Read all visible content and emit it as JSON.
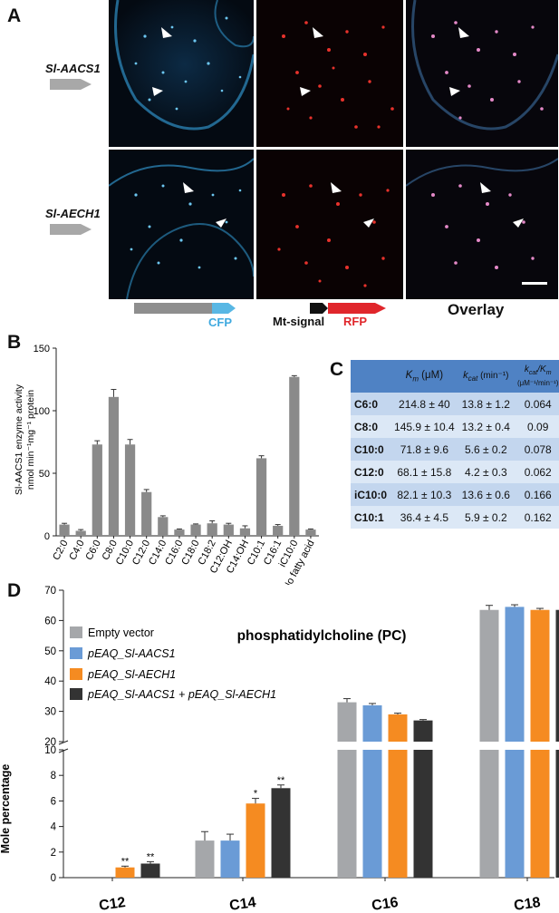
{
  "figure": {
    "panel_a": {
      "letter": "A",
      "rows": [
        {
          "gene": "Sl-AACS1"
        },
        {
          "gene": "Sl-AECH1"
        }
      ],
      "construct_labels": {
        "cfp": "CFP",
        "mt_signal": "Mt-signal",
        "rfp": "RFP",
        "overlay": "Overlay"
      },
      "colors": {
        "cfp": "#58b7e4",
        "rfp": "#e0262b",
        "arrow_gray": "#8e8e8e",
        "mt_black": "#111111"
      }
    },
    "panel_b": {
      "letter": "B",
      "ylabel_line1": "Sl-AACS1 enzyme activity",
      "ylabel_line2": "nmol min⁻¹mg⁻¹ protein"
    },
    "panel_c": {
      "letter": "C",
      "header": {
        "km": "K",
        "km_sub": "m",
        "km_unit": " (μM)",
        "kcat": "k",
        "kcat_sub": "cat",
        "kcat_unit": " (min⁻¹)",
        "ratio": "k",
        "ratio_sub1": "cat",
        "ratio_mid": "/K",
        "ratio_sub2": "m",
        "ratio_unit": "(μM⁻¹/min⁻¹)"
      },
      "rows": [
        {
          "substrate": "C6:0",
          "km": "214.8 ± 40",
          "kcat": "13.8 ± 1.2",
          "ratio": "0.064"
        },
        {
          "substrate": "C8:0",
          "km": "145.9 ± 10.4",
          "kcat": "13.2 ± 0.4",
          "ratio": "0.09"
        },
        {
          "substrate": "C10:0",
          "km": "71.8 ± 9.6",
          "kcat": "5.6 ± 0.2",
          "ratio": "0.078"
        },
        {
          "substrate": "C12:0",
          "km": "68.1 ± 15.8",
          "kcat": "4.2 ± 0.3",
          "ratio": "0.062"
        },
        {
          "substrate": "iC10:0",
          "km": "82.1 ± 10.3",
          "kcat": "13.6 ± 0.6",
          "ratio": "0.166"
        },
        {
          "substrate": "C10:1",
          "km": "36.4 ± 4.5",
          "kcat": "5.9 ± 0.2",
          "ratio": "0.162"
        }
      ],
      "colors": {
        "header_bg": "#4f82c4",
        "row_a": "#c3d6ee",
        "row_b": "#dce8f6"
      }
    },
    "panel_d": {
      "letter": "D",
      "title": "phosphatidylcholine (PC)",
      "ylabel": "Mole percentage",
      "legend": [
        "Empty vector",
        "pEAQ_Sl-AACS1",
        "pEAQ_Sl-AECH1",
        "pEAQ_Sl-AACS1 + pEAQ_Sl-AECH1"
      ],
      "colors": [
        "#a5a7aa",
        "#6a9bd6",
        "#f58b21",
        "#333333"
      ]
    }
  },
  "chart_data": [
    {
      "type": "bar",
      "panel": "B",
      "ylabel": "Sl-AACS1 enzyme activity nmol min⁻¹mg⁻¹ protein",
      "ylim": [
        0,
        150
      ],
      "yticks": [
        0,
        50,
        100,
        150
      ],
      "categories": [
        "C2:0",
        "C4:0",
        "C6:0",
        "C8:0",
        "C10:0",
        "C12:0",
        "C14:0",
        "C16:0",
        "C18:0",
        "C18:2",
        "C12:OH",
        "C14:OH",
        "C10:1",
        "C16:1",
        "iC10:0",
        "No fatty acid"
      ],
      "values": [
        9,
        4,
        73,
        111,
        73,
        35,
        15,
        5,
        9,
        10,
        9,
        6,
        62,
        8,
        127,
        5
      ],
      "errors": [
        1,
        1,
        3,
        6,
        4,
        2,
        1,
        0.5,
        0.5,
        2,
        1,
        2,
        2,
        1,
        1,
        0.5
      ],
      "bar_color": "#8a8a8a"
    },
    {
      "type": "bar",
      "panel": "D",
      "title": "phosphatidylcholine (PC)",
      "ylabel": "Mole percentage",
      "categories": [
        "C12",
        "C14",
        "C16",
        "C18"
      ],
      "yticks_lower": [
        0,
        2,
        4,
        6,
        8,
        10
      ],
      "yticks_upper": [
        20,
        30,
        40,
        50,
        60,
        70
      ],
      "axis_break": [
        10,
        20
      ],
      "series": [
        {
          "name": "Empty vector",
          "values": [
            0,
            2.9,
            33,
            63.5
          ],
          "errors": [
            0,
            0.7,
            1.2,
            1.5
          ],
          "sig": [
            "",
            "",
            "",
            ""
          ]
        },
        {
          "name": "pEAQ_Sl-AACS1",
          "values": [
            0,
            2.9,
            32,
            64.5
          ],
          "errors": [
            0,
            0.5,
            0.6,
            0.7
          ],
          "sig": [
            "",
            "",
            "",
            ""
          ]
        },
        {
          "name": "pEAQ_Sl-AECH1",
          "values": [
            0.8,
            5.8,
            29,
            63.5
          ],
          "errors": [
            0.1,
            0.4,
            0.4,
            0.5
          ],
          "sig": [
            "**",
            "*",
            "",
            ""
          ]
        },
        {
          "name": "pEAQ_Sl-AACS1 + pEAQ_Sl-AECH1",
          "values": [
            1.1,
            7.0,
            27,
            63.5
          ],
          "errors": [
            0.15,
            0.25,
            0.3,
            0.5
          ],
          "sig": [
            "**",
            "**",
            "",
            ""
          ]
        }
      ]
    }
  ]
}
